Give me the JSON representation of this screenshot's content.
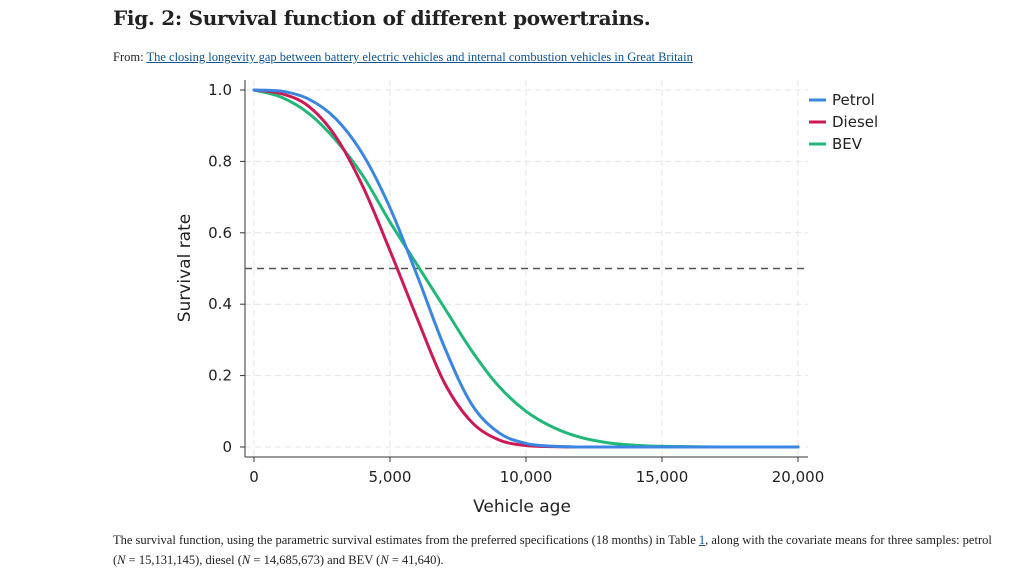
{
  "figure": {
    "title": "Fig. 2: Survival function of different powertrains.",
    "from_prefix": "From:",
    "from_link": "The closing longevity gap between battery electric vehicles and internal combustion vehicles in Great Britain",
    "caption_part1": "The survival function, using the parametric survival estimates from the preferred specifications (18 months) in Table ",
    "caption_table_link": "1",
    "caption_part2": ", along with the covariate means for three samples: petrol (",
    "caption_n1_label": "N",
    "caption_n1_value": " = 15,131,145), diesel (",
    "caption_n2_label": "N",
    "caption_n2_value": " = 14,685,673) and BEV (",
    "caption_n3_label": "N",
    "caption_n3_value": " = 41,640)."
  },
  "colors": {
    "petrol": "#3a86e0",
    "diesel": "#cc1a55",
    "bev": "#22b87a",
    "reference_line": "#555555",
    "grid": "#e4e4e4",
    "link": "#0b5394"
  },
  "chart_data": {
    "type": "line",
    "title": "",
    "xlabel": "Vehicle age",
    "ylabel": "Survival rate",
    "xlim": [
      0,
      20000
    ],
    "ylim": [
      0,
      1
    ],
    "xticks": [
      0,
      5000,
      10000,
      15000,
      20000
    ],
    "xtick_labels": [
      "0",
      "5,000",
      "10,000",
      "15,000",
      "20,000"
    ],
    "yticks": [
      0,
      0.2,
      0.4,
      0.6,
      0.8,
      1.0
    ],
    "ytick_labels": [
      "0",
      "0.2",
      "0.4",
      "0.6",
      "0.8",
      "1.0"
    ],
    "grid": true,
    "legend_position": "top-right",
    "reference_line": {
      "y": 0.5,
      "style": "dashed"
    },
    "x": [
      0,
      1000,
      2000,
      3000,
      4000,
      5000,
      6000,
      7000,
      8000,
      9000,
      10000,
      11000,
      12000,
      13000,
      14000,
      15000,
      16000,
      17000,
      18000,
      19000,
      20000
    ],
    "series": [
      {
        "name": "Petrol",
        "color_key": "petrol",
        "values": [
          1.0,
          0.997,
          0.975,
          0.92,
          0.82,
          0.67,
          0.48,
          0.28,
          0.12,
          0.04,
          0.01,
          0.002,
          0.0,
          0.0,
          0.0,
          0.0,
          0.0,
          0.0,
          0.0,
          0.0,
          0.0
        ]
      },
      {
        "name": "Diesel",
        "color_key": "diesel",
        "values": [
          1.0,
          0.99,
          0.955,
          0.87,
          0.73,
          0.55,
          0.36,
          0.18,
          0.07,
          0.02,
          0.004,
          0.001,
          0.0,
          0.0,
          0.0,
          0.0,
          0.0,
          0.0,
          0.0,
          0.0,
          0.0
        ]
      },
      {
        "name": "BEV",
        "color_key": "bev",
        "values": [
          1.0,
          0.98,
          0.935,
          0.86,
          0.76,
          0.63,
          0.51,
          0.39,
          0.27,
          0.17,
          0.1,
          0.055,
          0.027,
          0.012,
          0.005,
          0.002,
          0.001,
          0.0,
          0.0,
          0.0,
          0.0
        ]
      }
    ]
  }
}
